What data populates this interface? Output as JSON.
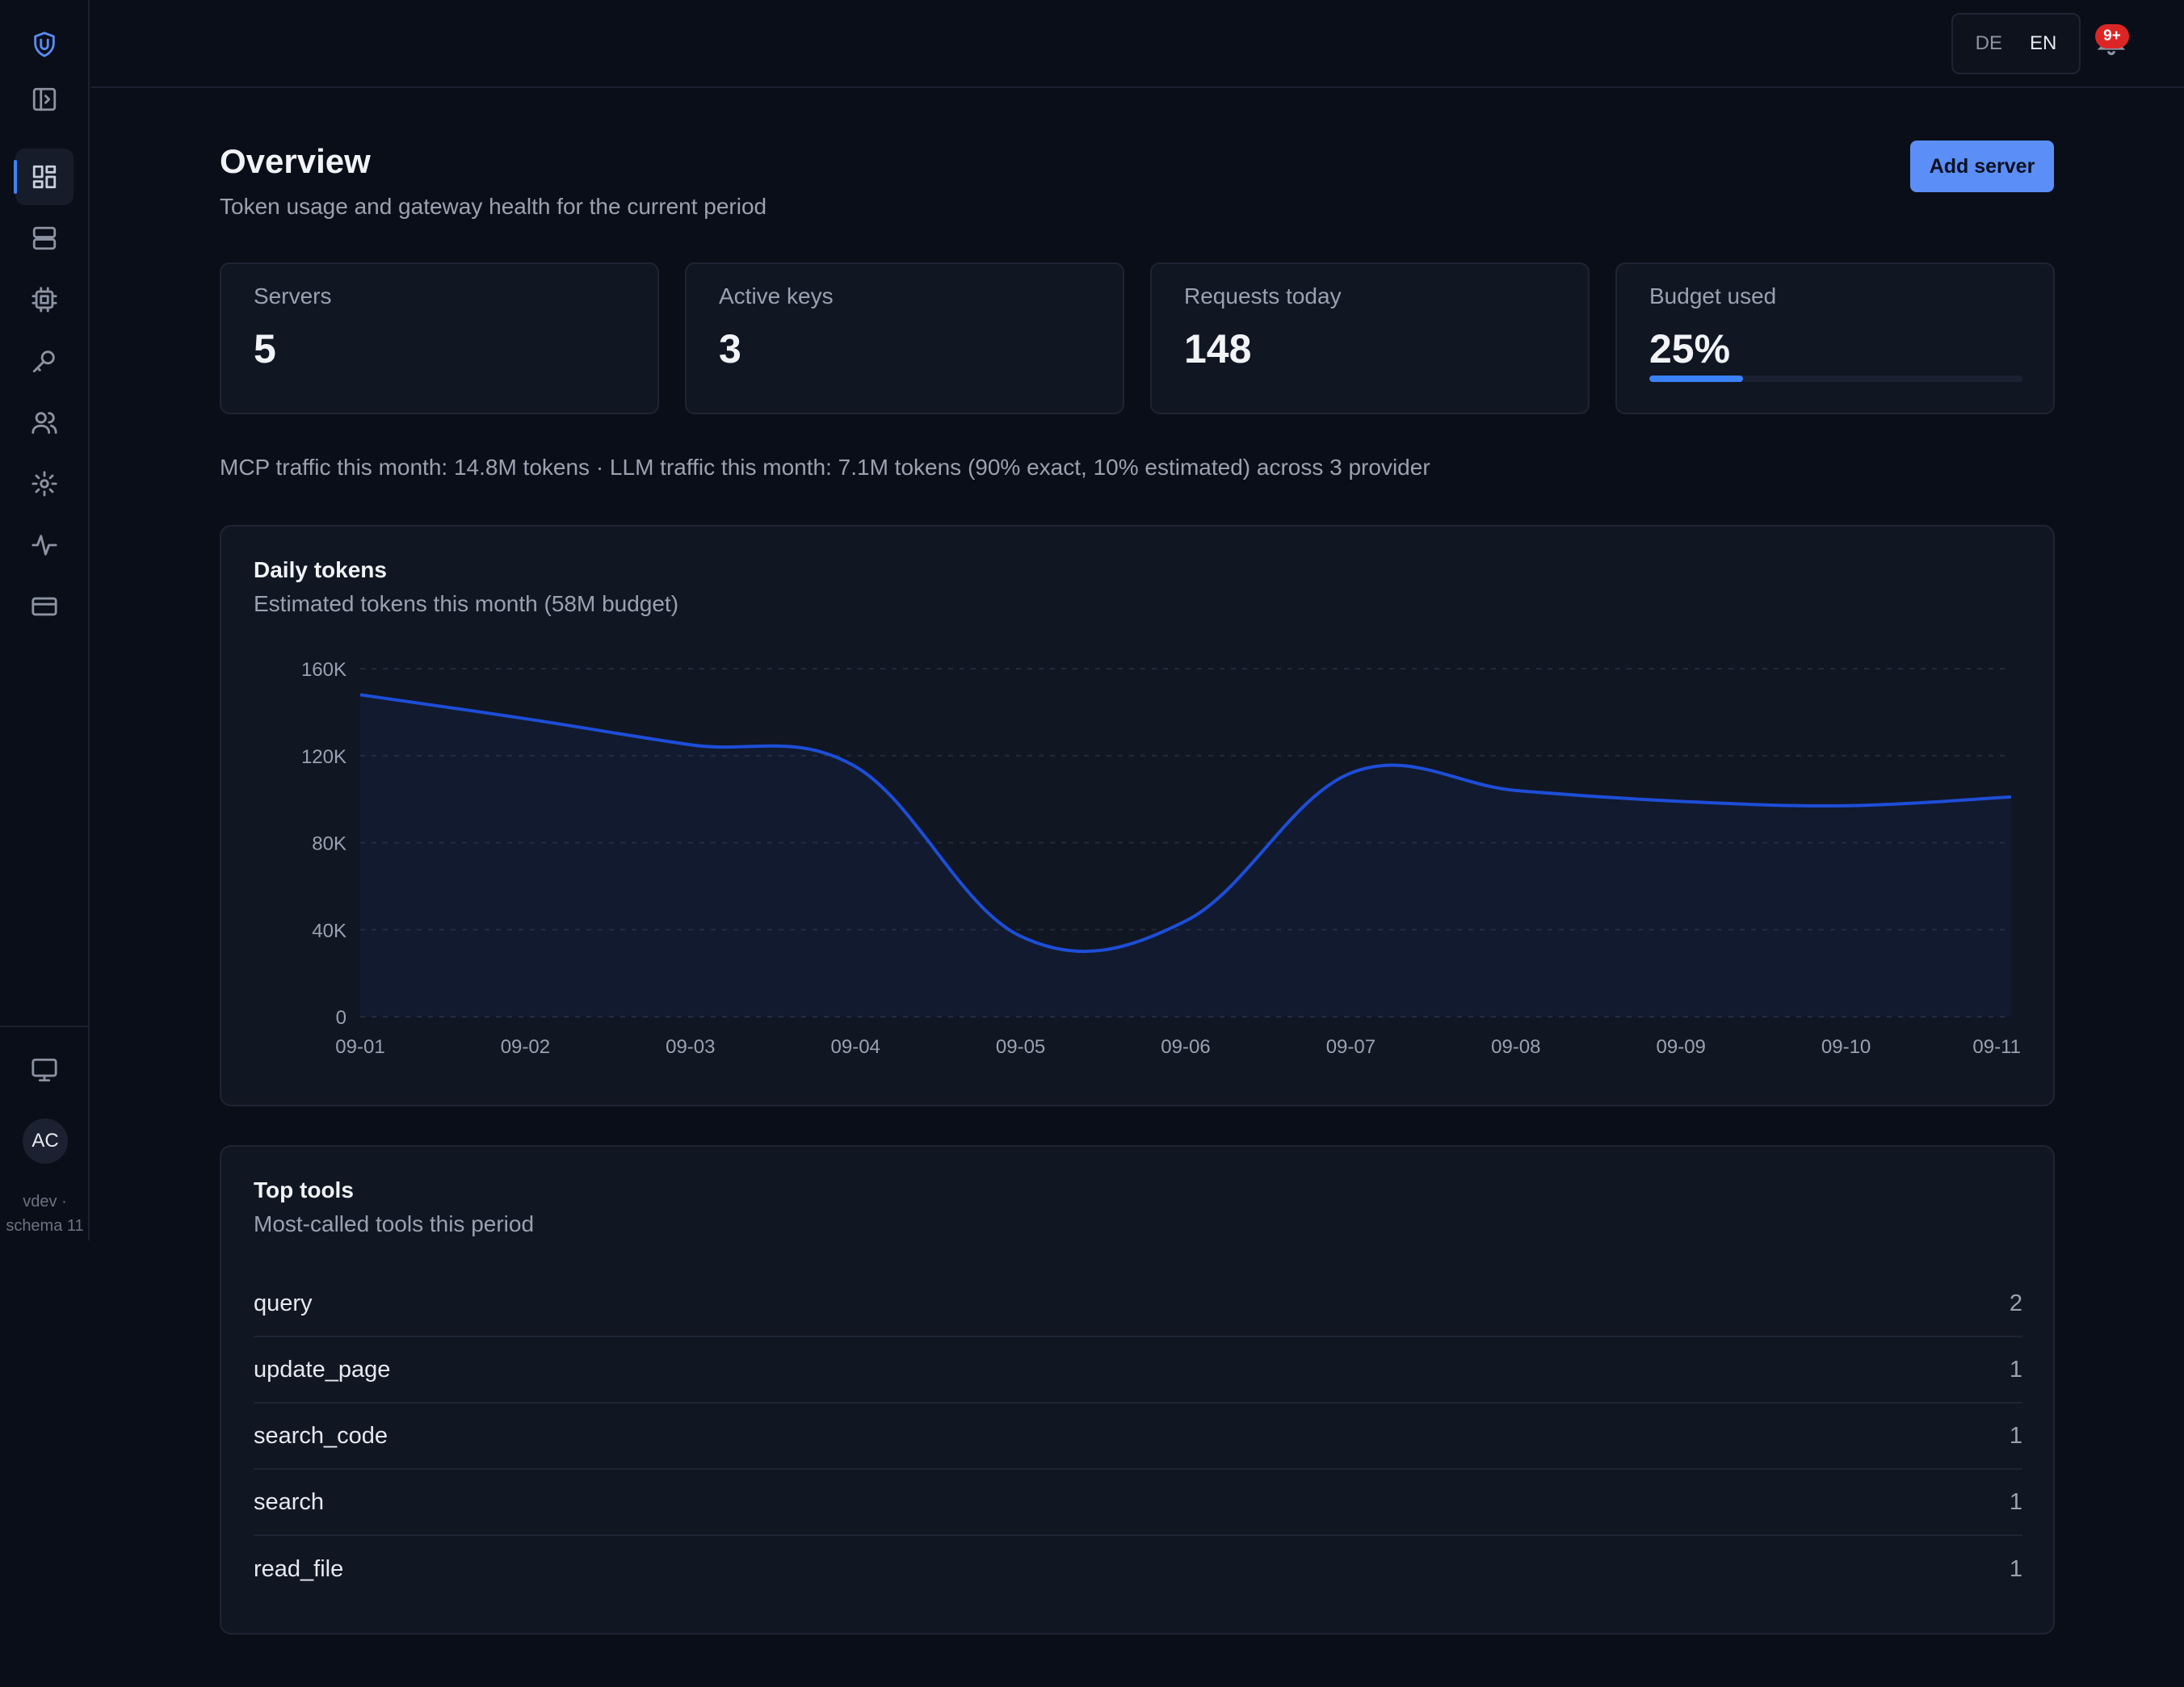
{
  "sidebar": {
    "icons": [
      "shield-logo-icon",
      "panel-toggle-icon",
      "dashboard-icon",
      "servers-icon",
      "chip-icon",
      "key-icon",
      "users-icon",
      "settings-icon",
      "activity-icon",
      "billing-card-icon",
      "monitor-icon"
    ],
    "avatar_initials": "AC",
    "version_line1": "vdev ·",
    "version_line2": "schema 11"
  },
  "topbar": {
    "languages": [
      "DE",
      "EN"
    ],
    "active_language": "EN",
    "notification_badge": "9+"
  },
  "header": {
    "title": "Overview",
    "subtitle": "Token usage and gateway health for the current period",
    "add_button_label": "Add server"
  },
  "stats": [
    {
      "label": "Servers",
      "value": "5"
    },
    {
      "label": "Active keys",
      "value": "3"
    },
    {
      "label": "Requests today",
      "value": "148"
    },
    {
      "label": "Budget used",
      "value": "25%",
      "progress": 0.25
    }
  ],
  "traffic_summary": "MCP traffic this month: 14.8M tokens · LLM traffic this month: 7.1M tokens (90% exact, 10% estimated) across 3 provider",
  "daily_tokens_card": {
    "title": "Daily tokens",
    "subtitle": "Estimated tokens this month (58M budget)"
  },
  "chart_data": {
    "type": "area",
    "x": [
      "09-01",
      "09-02",
      "09-03",
      "09-04",
      "09-05",
      "09-06",
      "09-07",
      "09-08",
      "09-09",
      "09-10",
      "09-11"
    ],
    "series": [
      {
        "values": [
          148000,
          137000,
          125000,
          115000,
          37000,
          44000,
          112000,
          104000,
          99000,
          97000,
          101000
        ]
      }
    ],
    "y_ticks": [
      "0",
      "40K",
      "80K",
      "120K",
      "160K"
    ],
    "ylim": [
      0,
      160000
    ],
    "grid": true,
    "line_color": "#1d4ed8"
  },
  "top_tools_card": {
    "title": "Top tools",
    "subtitle": "Most-called tools this period",
    "rows": [
      {
        "name": "query",
        "count": "2"
      },
      {
        "name": "update_page",
        "count": "1"
      },
      {
        "name": "search_code",
        "count": "1"
      },
      {
        "name": "search",
        "count": "1"
      },
      {
        "name": "read_file",
        "count": "1"
      }
    ]
  }
}
